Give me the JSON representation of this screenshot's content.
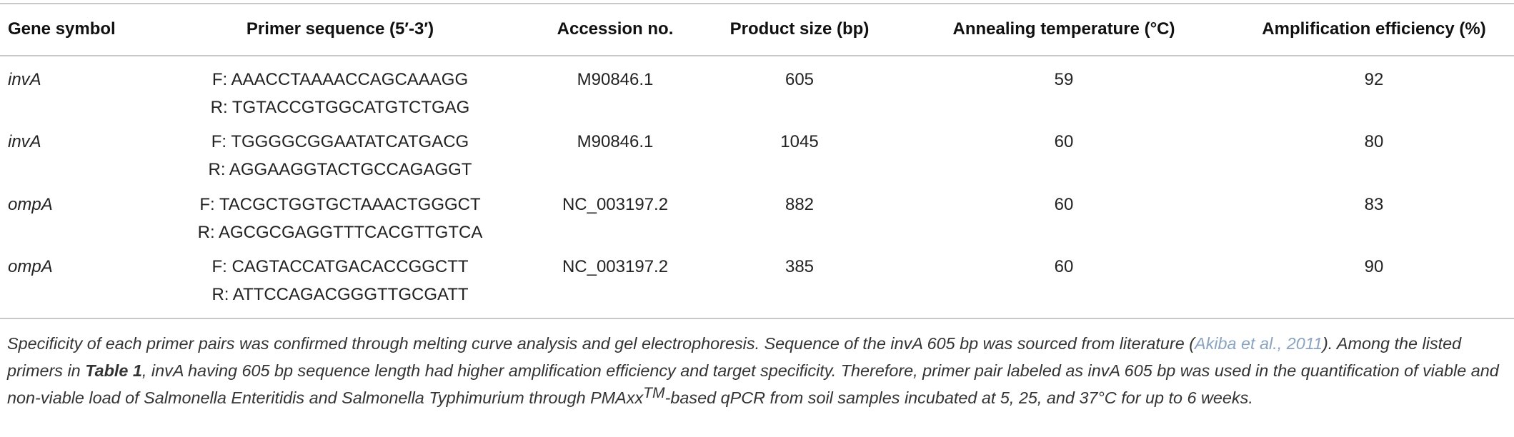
{
  "table": {
    "headers": [
      "Gene symbol",
      "Primer sequence (5′-3′)",
      "Accession no.",
      "Product size (bp)",
      "Annealing temperature (°C)",
      "Amplification efficiency (%)"
    ],
    "rows": [
      [
        "invA",
        [
          "F: AAACCTAAAACCAGCAAAGG",
          "R: TGTACCGTGGCATGTCTGAG"
        ],
        "M90846.1",
        "605",
        "59",
        "92"
      ],
      [
        "invA",
        [
          "F: TGGGGCGGAATATCATGACG",
          "R: AGGAAGGTACTGCCAGAGGT"
        ],
        "M90846.1",
        "1045",
        "60",
        "80"
      ],
      [
        "ompA",
        [
          "F: TACGCTGGTGCTAAACTGGGCT",
          "R: AGCGCGAGGTTTCACGTTGTCA"
        ],
        "NC_003197.2",
        "882",
        "60",
        "83"
      ],
      [
        "ompA",
        [
          "F: CAGTACCATGACACCGGCTT",
          "R: ATTCCAGACGGGTTGCGATT"
        ],
        "NC_003197.2",
        "385",
        "60",
        "90"
      ]
    ]
  },
  "footnote": {
    "text_1": "Specificity of each primer pairs was confirmed through melting curve analysis and gel electrophoresis. Sequence of the invA 605 bp was sourced from literature (",
    "citation": "Akiba et al., 2011",
    "text_2": "). Among the listed primers in ",
    "table_ref": "Table 1",
    "text_3": ", invA having 605 bp sequence length had higher amplification efficiency and target specificity. Therefore, primer pair labeled as invA 605 bp was used in the quantification of viable and non-viable load of Salmonella Enteritidis and Salmonella Typhimurium through PMAxx",
    "superscript": "TM",
    "text_4": "-based qPCR from soil samples incubated at 5, 25, and 37°C for up to 6 weeks."
  }
}
